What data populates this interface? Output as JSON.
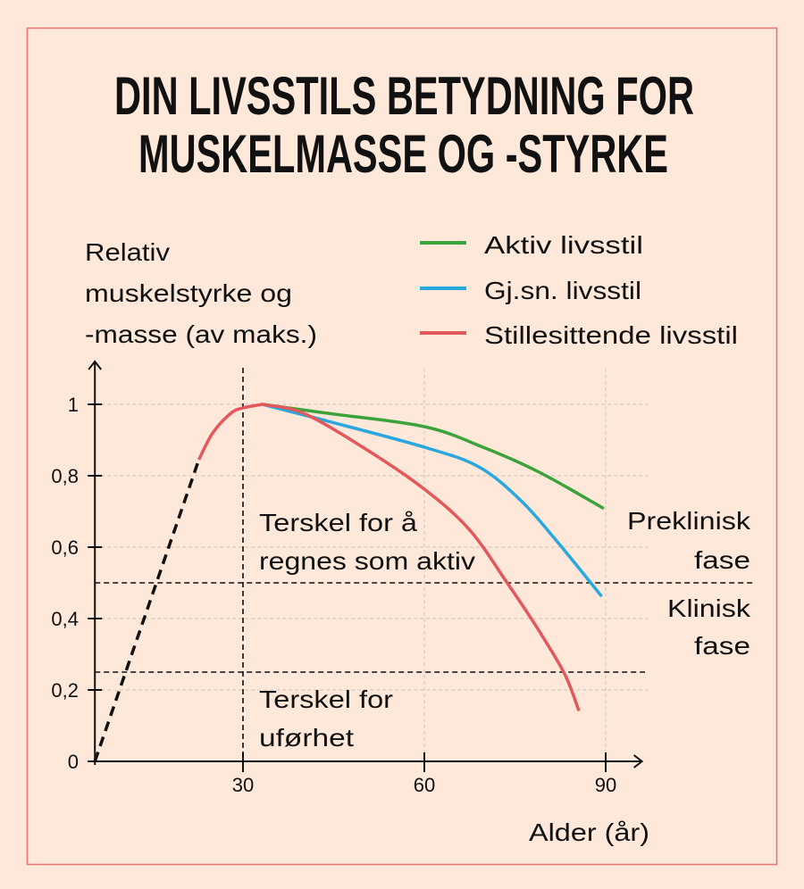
{
  "chart_data": {
    "type": "line",
    "title": [
      "DIN LIVSSTILS BETYDNING FOR",
      "MUSKELMASSE OG -STYRKE"
    ],
    "ylabel": [
      "Relativ",
      "muskelstyrke og",
      "-masse (av maks.)"
    ],
    "xlabel": "Alder (år)",
    "xlim": [
      5.5,
      96
    ],
    "ylim": [
      0,
      1.1
    ],
    "x_ticks": [
      {
        "value": 30,
        "label": "30"
      },
      {
        "value": 60,
        "label": "60"
      },
      {
        "value": 90,
        "label": "90"
      }
    ],
    "y_ticks": [
      {
        "value": 0,
        "label": "0"
      },
      {
        "value": 0.2,
        "label": "0,2"
      },
      {
        "value": 0.4,
        "label": "0,4"
      },
      {
        "value": 0.6,
        "label": "0,6"
      },
      {
        "value": 0.8,
        "label": "0,8"
      },
      {
        "value": 1,
        "label": "1"
      }
    ],
    "grid": true,
    "legend_position": "top-right",
    "growth_dashed": [
      [
        5.5,
        0
      ],
      [
        22.7,
        0.845
      ]
    ],
    "growth": [
      [
        22.7,
        0.845
      ],
      [
        25,
        0.92
      ],
      [
        28,
        0.975
      ],
      [
        30,
        0.99
      ],
      [
        33.2,
        1.0
      ]
    ],
    "series": [
      {
        "name": "Aktiv livsstil",
        "color": "#3ca23c",
        "points": [
          [
            33.2,
            1.0
          ],
          [
            44,
            0.975
          ],
          [
            60,
            0.9375
          ],
          [
            69.7,
            0.88
          ],
          [
            79,
            0.81
          ],
          [
            89.5,
            0.71
          ]
        ]
      },
      {
        "name": "Gj.sn. livsstil",
        "color": "#2aa7df",
        "points": [
          [
            33.2,
            1.0
          ],
          [
            44,
            0.953
          ],
          [
            60,
            0.88
          ],
          [
            69,
            0.825
          ],
          [
            76,
            0.73
          ],
          [
            82,
            0.615
          ],
          [
            89.2,
            0.465
          ]
        ]
      },
      {
        "name": "Stillesittende livsstil",
        "color": "#e4575a",
        "points": [
          [
            33.2,
            1.0
          ],
          [
            40,
            0.975
          ],
          [
            49.8,
            0.88
          ],
          [
            59.8,
            0.765
          ],
          [
            67.4,
            0.65
          ],
          [
            73.7,
            0.5
          ],
          [
            79,
            0.365
          ],
          [
            83.2,
            0.245
          ],
          [
            85.5,
            0.145
          ]
        ]
      }
    ],
    "vertical_marker": 30,
    "thresholds": [
      {
        "value": 0.5,
        "label": [
          "Terskel for å",
          "regnes som aktiv"
        ]
      },
      {
        "value": 0.25,
        "label": [
          "Terskel for",
          "uførhet"
        ]
      }
    ],
    "phases": {
      "above": [
        "Preklinisk",
        "fase"
      ],
      "below": [
        "Klinisk",
        "fase"
      ]
    }
  },
  "colors": {
    "background": "#fde8da",
    "border": "#e57373"
  }
}
